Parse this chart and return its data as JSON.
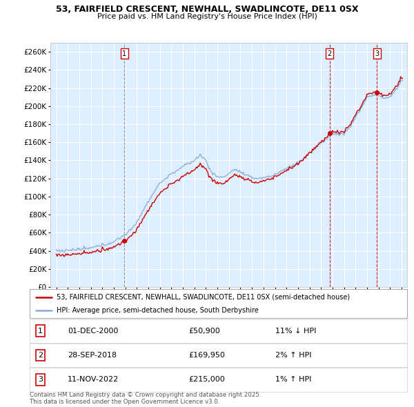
{
  "title1": "53, FAIRFIELD CRESCENT, NEWHALL, SWADLINCOTE, DE11 0SX",
  "title2": "Price paid vs. HM Land Registry's House Price Index (HPI)",
  "ylim": [
    0,
    270000
  ],
  "yticks": [
    0,
    20000,
    40000,
    60000,
    80000,
    100000,
    120000,
    140000,
    160000,
    180000,
    200000,
    220000,
    240000,
    260000
  ],
  "plot_bg": "#ddeeff",
  "legend_line1": "53, FAIRFIELD CRESCENT, NEWHALL, SWADLINCOTE, DE11 0SX (semi-detached house)",
  "legend_line2": "HPI: Average price, semi-detached house, South Derbyshire",
  "sale_color": "#cc0000",
  "hpi_color": "#88aad4",
  "transactions": [
    {
      "num": 1,
      "date": "01-DEC-2000",
      "price": 50900,
      "price_str": "£50,900",
      "pct": "11%",
      "dir": "↓",
      "year_x": 2000.92,
      "vline_color": "#888888",
      "vline_style": "--"
    },
    {
      "num": 2,
      "date": "28-SEP-2018",
      "price": 169950,
      "price_str": "£169,950",
      "pct": "2%",
      "dir": "↑",
      "year_x": 2018.74,
      "vline_color": "#cc0000",
      "vline_style": "--"
    },
    {
      "num": 3,
      "date": "11-NOV-2022",
      "price": 215000,
      "price_str": "£215,000",
      "pct": "1%",
      "dir": "↑",
      "year_x": 2022.86,
      "vline_color": "#cc0000",
      "vline_style": "--"
    }
  ],
  "footer": "Contains HM Land Registry data © Crown copyright and database right 2025.\nThis data is licensed under the Open Government Licence v3.0.",
  "xmin": 1994.5,
  "xmax": 2025.5
}
